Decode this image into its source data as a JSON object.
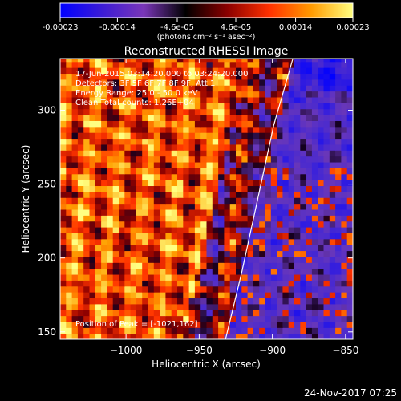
{
  "colorbar": {
    "tick_labels": [
      "-0.00023",
      "-0.00014",
      "-4.6e-05",
      "4.6e-05",
      "0.00014",
      "0.00023"
    ],
    "tick_values": [
      -0.00023,
      -0.00014,
      -4.6e-05,
      4.6e-05,
      0.00014,
      0.00023
    ],
    "range": [
      -0.00023,
      0.00023
    ],
    "units_label": "(photons cm⁻² s⁻¹ asec⁻²)",
    "colors": [
      "#0000ff",
      "#3b1bd6",
      "#7a36b8",
      "#000000",
      "#8b0000",
      "#ff3000",
      "#ff9a00",
      "#ffff80"
    ]
  },
  "chart_data": {
    "type": "heatmap",
    "title": "Reconstructed RHESSI Image",
    "xlabel": "Heliocentric X (arcsec)",
    "ylabel": "Heliocentric Y (arcsec)",
    "xlim": [
      -1045,
      -845
    ],
    "ylim": [
      145,
      335
    ],
    "x_ticks": [
      -1000,
      -950,
      -900,
      -850
    ],
    "x_tick_labels": [
      "−1000",
      "−950",
      "−900",
      "−850"
    ],
    "y_ticks": [
      150,
      200,
      250,
      300
    ],
    "y_tick_labels": [
      "150",
      "200",
      "250",
      "300"
    ],
    "limb_curve": {
      "x": [
        -932,
        -921,
        -910,
        -899,
        -886
      ],
      "y": [
        145,
        190,
        240,
        290,
        335
      ]
    },
    "annotations": [
      "17-Jun-2015 03:14:20.000 to 03:24:20.000",
      "Detectors: 3F 5F 6F 7F 8F 9F, Att 1",
      "Energy Range: 25.0 - 50.0 keV",
      "Clean    Total counts: 1.26E+04"
    ],
    "peak_label": "Position of Peak = [-1021,162]",
    "peak": [
      -1021,
      162
    ]
  },
  "footer": {
    "timestamp": "24-Nov-2017 07:25"
  }
}
